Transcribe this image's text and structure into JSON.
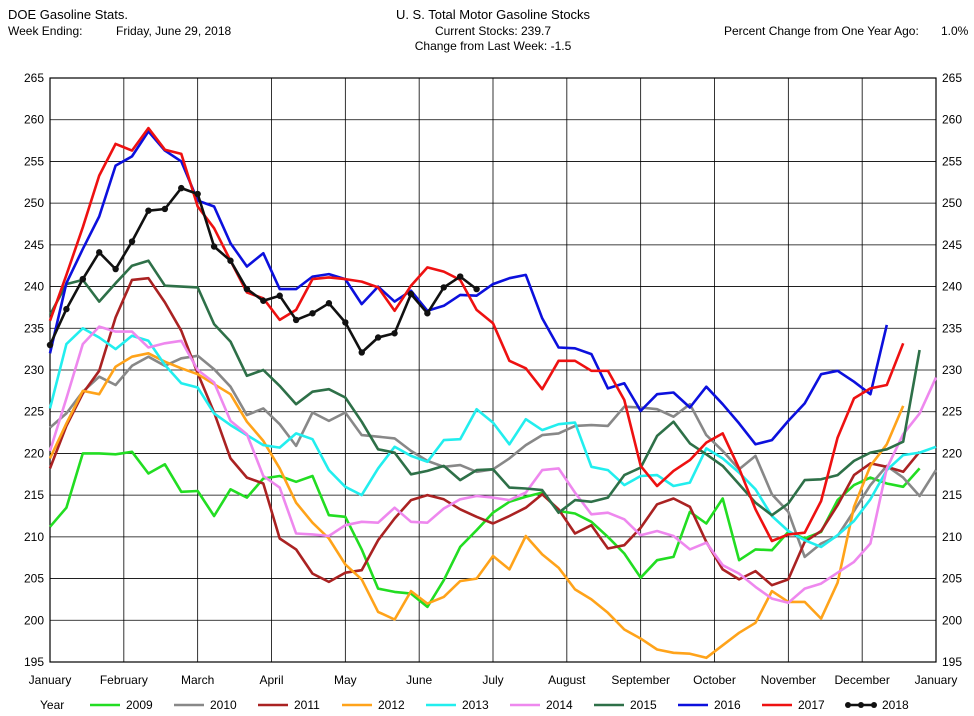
{
  "header": {
    "app_title": "DOE Gasoline Stats.",
    "week_label": "Week Ending:",
    "week_value": "Friday, June 29, 2018",
    "chart_title": "U. S. Total Motor Gasoline Stocks",
    "current_stocks": "Current Stocks: 239.7",
    "change_last_week": "Change from Last Week: -1.5",
    "pct_change_label": "Percent Change from One Year Ago:",
    "pct_change_value": "1.0%"
  },
  "chart_data": {
    "type": "line",
    "title": "U. S. Total Motor Gasoline Stocks",
    "ylim": [
      195,
      265
    ],
    "y_ticks": [
      195,
      200,
      205,
      210,
      215,
      220,
      225,
      230,
      235,
      240,
      245,
      250,
      255,
      260,
      265
    ],
    "x_range": [
      1,
      53
    ],
    "x_tick_labels": [
      {
        "week": 1,
        "label": "January"
      },
      {
        "week": 6,
        "label": "February"
      },
      {
        "week": 11,
        "label": "March"
      },
      {
        "week": 16,
        "label": "April"
      },
      {
        "week": 21,
        "label": "May"
      },
      {
        "week": 26,
        "label": "June"
      },
      {
        "week": 31,
        "label": "July"
      },
      {
        "week": 36,
        "label": "August"
      },
      {
        "week": 41,
        "label": "September"
      },
      {
        "week": 46,
        "label": "October"
      },
      {
        "week": 51,
        "label": "November"
      },
      {
        "week": 56,
        "label": "December"
      },
      {
        "week": 61,
        "label": "January"
      }
    ],
    "grid": true,
    "legend_title": "Year",
    "legend_position": "bottom",
    "series": [
      {
        "name": "2009",
        "color": "#22dd22",
        "markers": false,
        "values": [
          211.2,
          213.5,
          220,
          220,
          219.9,
          220.2,
          217.6,
          218.7,
          215.4,
          215.5,
          212.5,
          215.7,
          214.7,
          217,
          217.3,
          216.6,
          217.3,
          212.6,
          212.4,
          208.5,
          203.8,
          203.4,
          203.2,
          201.6,
          204.8,
          208.8,
          210.8,
          212.9,
          214.2,
          214.8,
          215.3,
          213.1,
          212.8,
          211.8,
          210,
          208,
          205.1,
          207.2,
          207.6,
          213,
          211.6,
          214.6,
          207.2,
          208.5,
          208.4,
          210.6,
          209.8,
          210.6,
          214.4,
          216.2,
          217.1,
          216.4,
          216,
          218.2
        ]
      },
      {
        "name": "2010",
        "color": "#888888",
        "markers": false,
        "values": [
          223.1,
          224.8,
          227.4,
          229.2,
          228.2,
          230.5,
          231.6,
          230.5,
          231.4,
          231.7,
          230.1,
          228,
          224.6,
          225.4,
          223.5,
          220.9,
          224.9,
          223.9,
          224.9,
          222.2,
          222,
          221.8,
          220.3,
          219.1,
          218.4,
          218.6,
          217.8,
          218.1,
          219.4,
          221,
          222.2,
          222.4,
          223.3,
          223.4,
          223.3,
          225.6,
          225.5,
          225.3,
          224.4,
          225.9,
          222.2,
          220.3,
          218.1,
          219.7,
          215.1,
          213,
          207.6,
          209.2,
          210.1,
          213.1,
          216.2,
          218.5,
          217.1,
          214.9,
          218
        ]
      },
      {
        "name": "2011",
        "color": "#aa2222",
        "markers": false,
        "values": [
          218.2,
          223.3,
          227.2,
          229.9,
          236.3,
          240.8,
          241,
          238.1,
          234.7,
          229.6,
          224.9,
          219.4,
          217.1,
          216.4,
          209.8,
          208.5,
          205.6,
          204.6,
          205.7,
          206,
          209.6,
          212.2,
          214.4,
          215,
          214.5,
          213.3,
          212.4,
          211.6,
          212.5,
          213.5,
          215.1,
          213.3,
          210.4,
          211.4,
          208.6,
          209,
          211.1,
          213.9,
          214.6,
          213.6,
          209.4,
          206.1,
          204.9,
          205.9,
          204.2,
          204.9,
          209.4,
          210.7,
          213.8,
          217.4,
          218.8,
          218.4,
          217.8,
          220.2
        ]
      },
      {
        "name": "2012",
        "color": "#ffa31a",
        "markers": false,
        "values": [
          219.4,
          223.6,
          227.5,
          227.1,
          230.4,
          231.6,
          232,
          231,
          230.2,
          229.5,
          228.3,
          227.1,
          223.8,
          221.5,
          218.2,
          214.1,
          211.7,
          209.8,
          206.7,
          204.9,
          201,
          200.1,
          203.5,
          202,
          202.8,
          204.7,
          205,
          207.7,
          206.1,
          210.1,
          207.9,
          206.3,
          203.7,
          202.5,
          200.9,
          198.9,
          197.8,
          196.5,
          196.1,
          196,
          195.5,
          197,
          198.5,
          199.7,
          203.5,
          202.2,
          202.2,
          200.2,
          204.5,
          213.6,
          218.5,
          221.1,
          225.7
        ]
      },
      {
        "name": "2013",
        "color": "#22eeee",
        "markers": false,
        "values": [
          225.4,
          233.1,
          235,
          233.9,
          232.5,
          234.1,
          233.5,
          230.6,
          228.4,
          227.9,
          224.8,
          223.4,
          222.2,
          221,
          220.7,
          222.4,
          221.7,
          218,
          216,
          215,
          218.2,
          220.8,
          219.7,
          219,
          221.6,
          221.7,
          225.3,
          223.7,
          221.1,
          224.1,
          222.8,
          223.5,
          223.7,
          218.4,
          218,
          216.2,
          217.3,
          217.4,
          216.1,
          216.5,
          220.6,
          219.4,
          217.7,
          215.7,
          212.5,
          210.7,
          209.6,
          208.8,
          210.2,
          211.9,
          214.5,
          218,
          219.8,
          220.1,
          220.8
        ]
      },
      {
        "name": "2014",
        "color": "#ee88ee",
        "markers": false,
        "values": [
          220.3,
          226.6,
          233.1,
          235.2,
          234.6,
          234.6,
          232.7,
          233.2,
          233.5,
          230,
          228.5,
          223.9,
          222.3,
          217.3,
          215.9,
          210.4,
          210.3,
          210.1,
          211.4,
          211.8,
          211.7,
          213.5,
          211.8,
          211.7,
          213.4,
          214.5,
          214.9,
          214.7,
          214.4,
          215.3,
          218,
          218.2,
          215.3,
          212.7,
          212.9,
          212.1,
          210.2,
          210.7,
          210.1,
          208.5,
          209.3,
          206.6,
          205.6,
          204,
          202.6,
          202.1,
          203.8,
          204.4,
          205.7,
          207,
          209.2,
          218.2,
          222.3,
          224.8,
          229.1
        ]
      },
      {
        "name": "2015",
        "color": "#2e7048",
        "markers": false,
        "values": [
          236.6,
          240.3,
          240.8,
          238.2,
          240.4,
          242.5,
          243.1,
          240.1,
          240,
          239.9,
          235.5,
          233.4,
          229.3,
          230,
          228.1,
          225.9,
          227.4,
          227.7,
          226.7,
          223.8,
          220.5,
          220.1,
          217.5,
          217.9,
          218.5,
          216.8,
          218,
          218.1,
          215.9,
          215.8,
          215.6,
          212.9,
          214.4,
          214.2,
          214.7,
          217.4,
          218.3,
          222.1,
          223.8,
          221.2,
          219.9,
          218.5,
          216.3,
          214.1,
          212.6,
          214,
          216.8,
          216.9,
          217.4,
          219.1,
          220.1,
          220.5,
          221.4,
          232.4
        ]
      },
      {
        "name": "2016",
        "color": "#0c10dd",
        "markers": false,
        "values": [
          232,
          240.4,
          244.5,
          248.4,
          254.5,
          255.6,
          258.6,
          256.3,
          255,
          250.3,
          249.6,
          245.2,
          242.4,
          244,
          239.7,
          239.7,
          241.2,
          241.5,
          240.9,
          237.9,
          240,
          238.2,
          239.5,
          237.1,
          237.7,
          239,
          238.9,
          240.3,
          241,
          241.4,
          236.2,
          232.7,
          232.6,
          231.9,
          227.8,
          228.4,
          225.1,
          227.1,
          227.3,
          225.5,
          228,
          225.9,
          223.6,
          221.1,
          221.6,
          223.9,
          226,
          229.5,
          229.9,
          228.6,
          227.1,
          235.4
        ]
      },
      {
        "name": "2017",
        "color": "#ee1111",
        "markers": false,
        "values": [
          235.9,
          241.4,
          247.1,
          253.3,
          257.1,
          256.3,
          259,
          256.4,
          255.9,
          249.6,
          247,
          243.1,
          239.3,
          238.6,
          236,
          237.2,
          240.9,
          241.1,
          240.9,
          240.6,
          239.9,
          237.1,
          240.1,
          242.3,
          241.8,
          240.8,
          237.2,
          235.6,
          231.1,
          230.2,
          227.7,
          231.1,
          231.1,
          229.9,
          229.9,
          226.4,
          218.5,
          216.1,
          217.9,
          219.2,
          221.3,
          222.4,
          218.2,
          213.3,
          209.5,
          210.3,
          210.5,
          214.3,
          221.9,
          226.6,
          227.8,
          228.2,
          233.2
        ]
      },
      {
        "name": "2018",
        "color": "#111111",
        "markers": true,
        "values": [
          233,
          237.3,
          240.9,
          244.1,
          242.1,
          245.4,
          249.1,
          249.3,
          251.8,
          251.1,
          244.8,
          243.1,
          239.7,
          238.3,
          238.9,
          236,
          236.8,
          238,
          235.7,
          232.1,
          233.9,
          234.4,
          239.1,
          236.8,
          239.9,
          241.2,
          239.7
        ]
      }
    ]
  }
}
